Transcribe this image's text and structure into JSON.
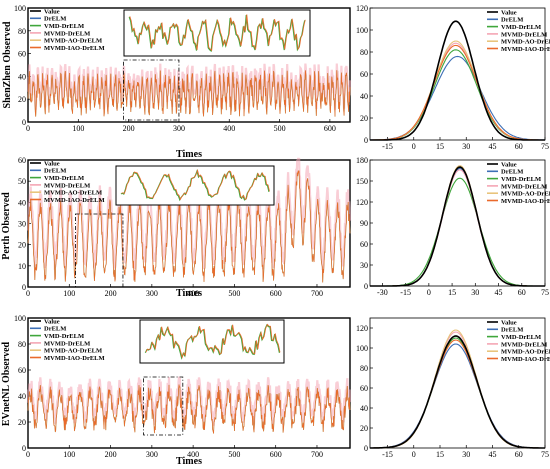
{
  "colors": {
    "Value": "#000000",
    "DrELM": "#3d6fb6",
    "VMD-DrELM": "#3fa63c",
    "MVMD-DrELM": "#f4a6b4",
    "MVMD-AO-DrELM": "#e8c47c",
    "MVMD-IAO-DrELM": "#ea6a2c"
  },
  "chart_data": [
    {
      "id": "shenzhen-series",
      "type": "line",
      "ylabel": "ShenZhen Observed",
      "xlabel": "Times",
      "xlim": [
        0,
        640
      ],
      "ylim": [
        0,
        100
      ],
      "xticks": [
        0,
        100,
        200,
        300,
        400,
        500,
        600
      ],
      "yticks": [
        0,
        20,
        40,
        60,
        80,
        100
      ],
      "legend": [
        "Value",
        "DrELM",
        "VMD-DrELM",
        "MVMD-DrELM",
        "MVMD-AO-DrELM",
        "MVMD-IAO-DrELM"
      ],
      "legend_position": "top-left",
      "zoom_window": [
        190,
        300
      ],
      "series_approx": {
        "mean": 25,
        "amplitude": 12,
        "noise": 9,
        "period": 9
      }
    },
    {
      "id": "shenzhen-density",
      "type": "area",
      "xlim": [
        -25,
        75
      ],
      "ylim": [
        0,
        120
      ],
      "xticks": [
        -15,
        0,
        15,
        30,
        45,
        60,
        75
      ],
      "yticks": [
        0,
        20,
        40,
        60,
        80,
        100,
        120
      ],
      "legend": [
        "Value",
        "DrELM",
        "VMD-DrELM",
        "MVMD-DrELM",
        "MVMD-AO-DrELM",
        "MVMD-IAO-DrELM"
      ],
      "legend_position": "top-right",
      "series": [
        {
          "name": "Value",
          "peak": 108,
          "mean": 24,
          "sd": 10.5
        },
        {
          "name": "DrELM",
          "peak": 76,
          "mean": 25,
          "sd": 13
        },
        {
          "name": "VMD-DrELM",
          "peak": 82,
          "mean": 24,
          "sd": 12
        },
        {
          "name": "MVMD-DrELM",
          "peak": 88,
          "mean": 24,
          "sd": 12
        },
        {
          "name": "MVMD-AO-DrELM",
          "peak": 90,
          "mean": 24,
          "sd": 12
        },
        {
          "name": "MVMD-IAO-DrELM",
          "peak": 86,
          "mean": 24,
          "sd": 12.2
        }
      ]
    },
    {
      "id": "perth-series",
      "type": "line",
      "ylabel": "Perth Observed",
      "xlabel": "Times",
      "xlim": [
        0,
        780
      ],
      "ylim": [
        0,
        60
      ],
      "xticks": [
        0,
        100,
        200,
        300,
        400,
        500,
        600,
        700
      ],
      "yticks": [
        0,
        10,
        20,
        30,
        40,
        50,
        60
      ],
      "legend": [
        "Value",
        "DrELM",
        "VMD-DrELM",
        "MVMD-DrELM",
        "MVMD-AO-DrELM",
        "MVMD-IAO-DrELM"
      ],
      "legend_position": "top-left",
      "zoom_window": [
        115,
        230
      ],
      "series_approx": {
        "mean": 22,
        "amplitude": 16,
        "noise": 4,
        "period": 24
      }
    },
    {
      "id": "perth-density",
      "type": "area",
      "xlim": [
        -38,
        75
      ],
      "ylim": [
        0,
        180
      ],
      "xticks": [
        -30,
        -15,
        0,
        15,
        30,
        45,
        60,
        75
      ],
      "yticks": [
        0,
        30,
        60,
        90,
        120,
        150,
        180
      ],
      "legend": [
        "Value",
        "DrELM",
        "VMD-DrELM",
        "MVMD-DrELM",
        "MVMD-AO-DrELM",
        "MVMD-IAO-DrELM"
      ],
      "legend_position": "top-right",
      "series": [
        {
          "name": "Value",
          "peak": 170,
          "mean": 20,
          "sd": 11
        },
        {
          "name": "DrELM",
          "peak": 168,
          "mean": 20,
          "sd": 11
        },
        {
          "name": "VMD-DrELM",
          "peak": 154,
          "mean": 20,
          "sd": 12
        },
        {
          "name": "MVMD-DrELM",
          "peak": 166,
          "mean": 20,
          "sd": 11
        },
        {
          "name": "MVMD-AO-DrELM",
          "peak": 172,
          "mean": 20,
          "sd": 11
        },
        {
          "name": "MVMD-IAO-DrELM",
          "peak": 170,
          "mean": 20,
          "sd": 11
        }
      ]
    },
    {
      "id": "evnetnl-series",
      "type": "line",
      "ylabel": "EVnetNL Observed",
      "xlabel": "Times",
      "xlim": [
        0,
        780
      ],
      "ylim": [
        0,
        100
      ],
      "xticks": [
        0,
        100,
        200,
        300,
        400,
        500,
        600,
        700
      ],
      "yticks": [
        0,
        20,
        40,
        60,
        80,
        100
      ],
      "legend": [
        "Value",
        "DrELM",
        "VMD-DrELM",
        "MVMD-DrELM",
        "MVMD-AO-DrELM",
        "MVMD-IAO-DrELM"
      ],
      "legend_position": "top-left",
      "zoom_window": [
        280,
        375
      ],
      "series_approx": {
        "mean": 30,
        "amplitude": 12,
        "noise": 7,
        "period": 24
      }
    },
    {
      "id": "evnetnl-density",
      "type": "area",
      "xlim": [
        -25,
        75
      ],
      "ylim": [
        0,
        130
      ],
      "xticks": [
        -15,
        0,
        15,
        30,
        45,
        60,
        75
      ],
      "yticks": [
        0,
        20,
        40,
        60,
        80,
        100,
        120
      ],
      "legend": [
        "Value",
        "DrELM",
        "VMD-DrELM",
        "MVMD-DrELM",
        "MVMD-AO-DrELM",
        "MVMD-IAO-DrELM"
      ],
      "legend_position": "top-right",
      "series": [
        {
          "name": "Value",
          "peak": 112,
          "mean": 24,
          "sd": 12
        },
        {
          "name": "DrELM",
          "peak": 104,
          "mean": 24,
          "sd": 12.5
        },
        {
          "name": "VMD-DrELM",
          "peak": 110,
          "mean": 24,
          "sd": 12
        },
        {
          "name": "MVMD-DrELM",
          "peak": 116,
          "mean": 24,
          "sd": 11.8
        },
        {
          "name": "MVMD-AO-DrELM",
          "peak": 118,
          "mean": 24,
          "sd": 11.7
        },
        {
          "name": "MVMD-IAO-DrELM",
          "peak": 108,
          "mean": 24,
          "sd": 12.2
        }
      ]
    }
  ]
}
